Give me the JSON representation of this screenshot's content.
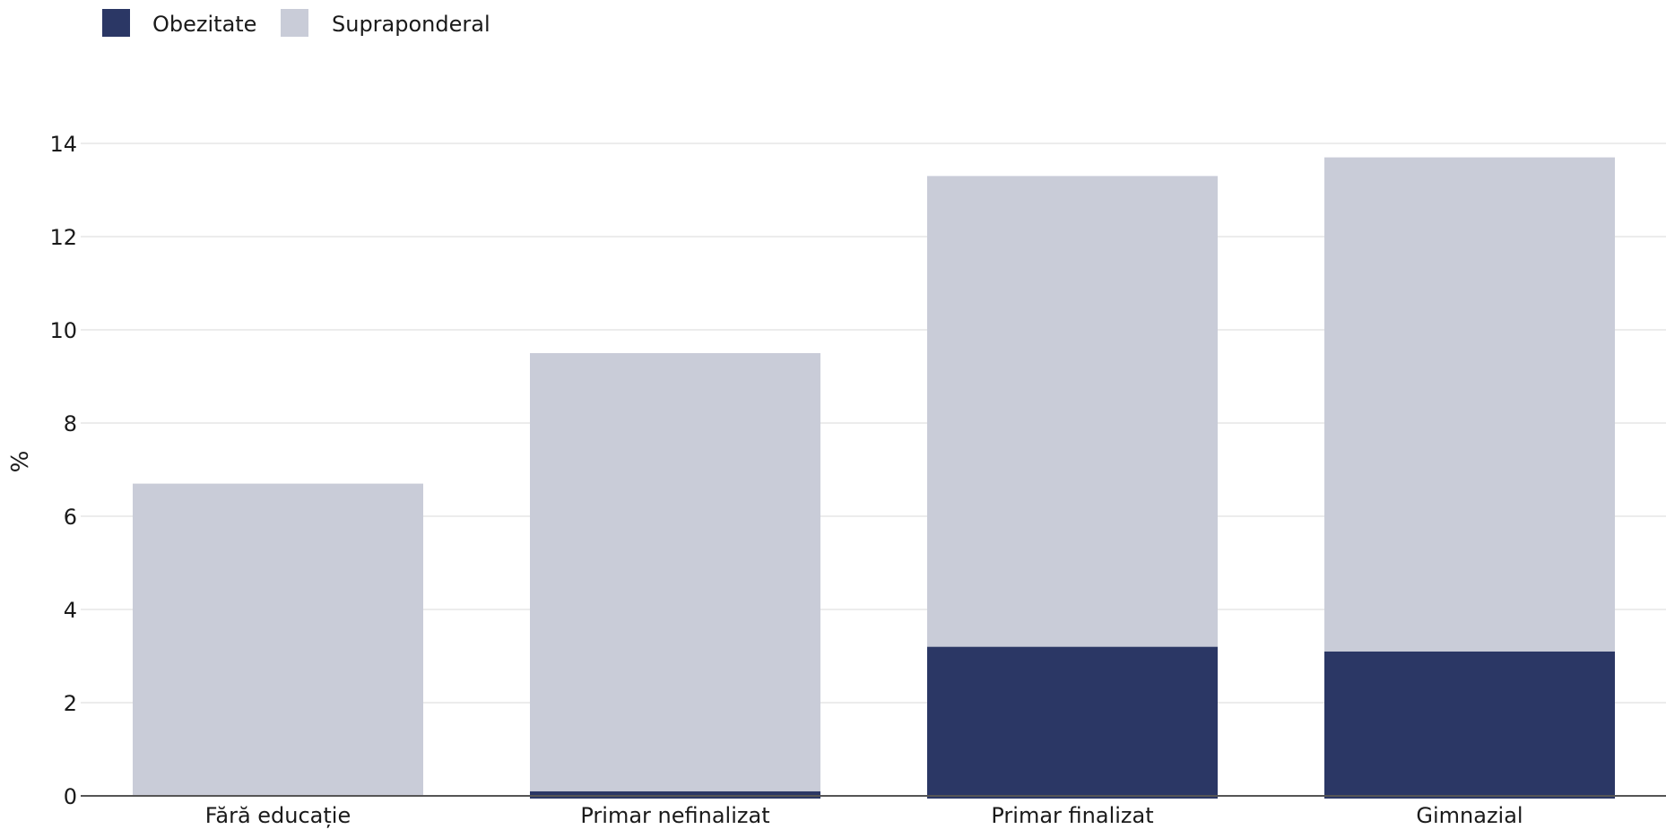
{
  "chart_data": {
    "type": "bar",
    "stacked": true,
    "title": "",
    "xlabel": "",
    "ylabel": "%",
    "ylim": [
      0,
      14
    ],
    "yticks": [
      "0",
      "2",
      "4",
      "6",
      "8",
      "10",
      "12",
      "14"
    ],
    "grid": true,
    "legend_position": "top-left",
    "categories": [
      "Fără educație",
      "Primar nefinalizat",
      "Primar finalizat",
      "Gimnazial"
    ],
    "series": [
      {
        "name": "Obezitate",
        "color": "#2b3765",
        "values": [
          0.0,
          0.1,
          3.2,
          3.1
        ]
      },
      {
        "name": "Supraponderal",
        "color": "#c9ccd8",
        "values": [
          6.7,
          9.4,
          10.1,
          10.6
        ]
      }
    ]
  }
}
